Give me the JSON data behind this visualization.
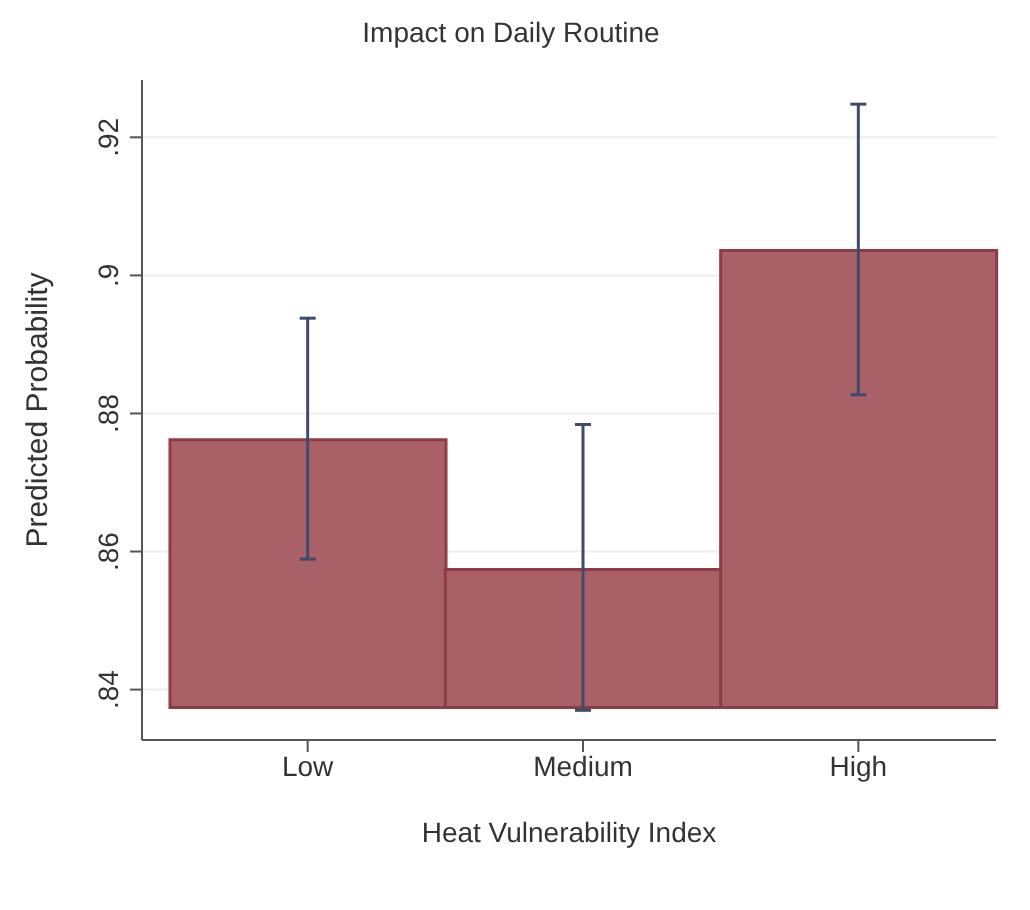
{
  "chart_data": {
    "type": "bar",
    "title": "Impact on Daily Routine",
    "xlabel": "Heat Vulnerability Index",
    "ylabel": "Predicted Probability",
    "categories": [
      "Low",
      "Medium",
      "High"
    ],
    "base": [
      0.8374,
      0.8374,
      0.8374
    ],
    "values": [
      0.0388,
      0.02,
      0.0662
    ],
    "errors": [
      [
        0.8589,
        0.8938
      ],
      [
        0.837,
        0.8784
      ],
      [
        0.8827,
        0.9248
      ]
    ],
    "color": "#aa6067",
    "ylim": [
      0.8327,
      0.9283
    ],
    "yticks": [
      {
        "value": 0.84,
        "label": ".84"
      },
      {
        "value": 0.86,
        "label": ".86"
      },
      {
        "value": 0.88,
        "label": ".88"
      },
      {
        "value": 0.9,
        "label": ".9"
      },
      {
        "value": 0.92,
        "label": ".92"
      }
    ],
    "grid": "y"
  }
}
